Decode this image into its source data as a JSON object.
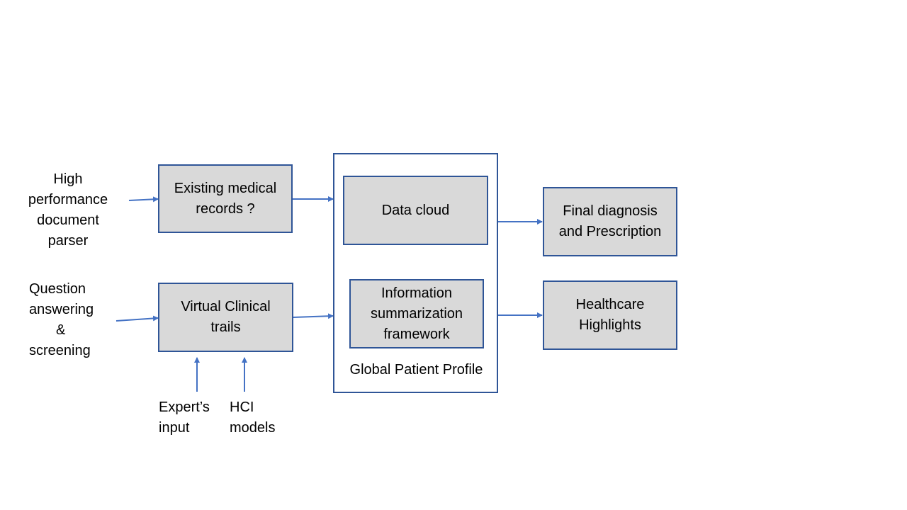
{
  "inputs": {
    "parser": [
      "High",
      "performance",
      "document",
      "parser"
    ],
    "qa": [
      "Question",
      "answering",
      "&",
      "screening"
    ],
    "expert": [
      "Expert’s",
      "input"
    ],
    "hci": [
      "HCI",
      "models"
    ]
  },
  "boxes": {
    "existing_records": [
      "Existing medical",
      "records ?"
    ],
    "virtual_trails": [
      "Virtual Clinical",
      "trails"
    ],
    "data_cloud": [
      "Data cloud"
    ],
    "info_summary": [
      "Information",
      "summarization",
      "framework"
    ],
    "final_diagnosis": [
      "Final diagnosis",
      "and Prescription"
    ],
    "healthcare_highlights": [
      "Healthcare",
      "Highlights"
    ]
  },
  "container": {
    "label": "Global Patient Profile"
  },
  "colors": {
    "border": "#2f5597",
    "box_fill": "#d9d9d9",
    "arrow": "#4472c4"
  }
}
